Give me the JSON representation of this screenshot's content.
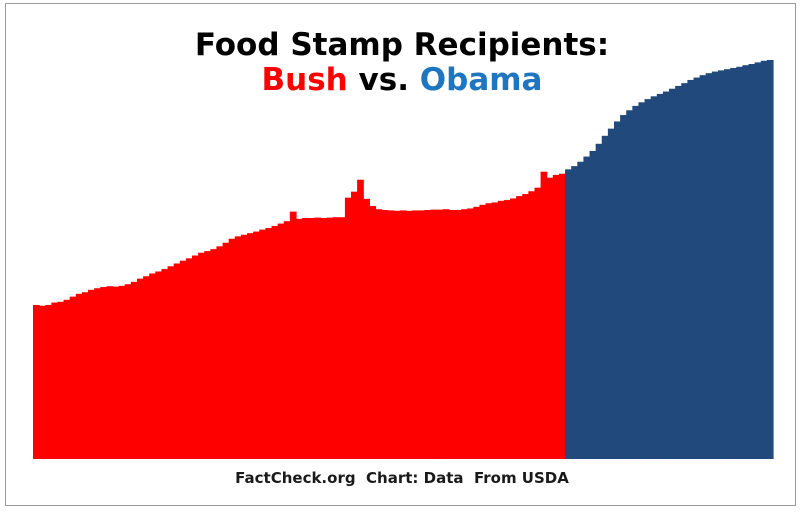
{
  "chart_data": {
    "type": "bar",
    "title_line1": "Food Stamp Recipients:",
    "title_line2": {
      "bush": "Bush",
      "vs": "vs.",
      "obama": "Obama"
    },
    "grid": false,
    "series": [
      {
        "name": "Bush",
        "color": "#ff0000",
        "values": [
          0.386,
          0.384,
          0.386,
          0.392,
          0.394,
          0.399,
          0.407,
          0.414,
          0.418,
          0.424,
          0.428,
          0.431,
          0.433,
          0.432,
          0.434,
          0.438,
          0.444,
          0.452,
          0.458,
          0.465,
          0.47,
          0.476,
          0.483,
          0.49,
          0.497,
          0.503,
          0.51,
          0.517,
          0.521,
          0.526,
          0.533,
          0.542,
          0.552,
          0.558,
          0.562,
          0.566,
          0.57,
          0.575,
          0.579,
          0.584,
          0.59,
          0.596,
          0.62,
          0.602,
          0.604,
          0.604,
          0.605,
          0.604,
          0.605,
          0.606,
          0.606,
          0.655,
          0.67,
          0.7,
          0.652,
          0.634,
          0.626,
          0.624,
          0.623,
          0.622,
          0.623,
          0.622,
          0.623,
          0.623,
          0.624,
          0.625,
          0.625,
          0.626,
          0.624,
          0.624,
          0.626,
          0.628,
          0.632,
          0.637,
          0.641,
          0.643,
          0.647,
          0.649,
          0.653,
          0.659,
          0.664,
          0.671,
          0.68,
          0.72,
          0.705,
          0.712,
          0.715
        ]
      },
      {
        "name": "Obama",
        "color": "#21497b",
        "values": [
          0.726,
          0.734,
          0.745,
          0.758,
          0.772,
          0.79,
          0.81,
          0.828,
          0.846,
          0.862,
          0.874,
          0.885,
          0.894,
          0.902,
          0.909,
          0.915,
          0.921,
          0.928,
          0.935,
          0.942,
          0.95,
          0.956,
          0.962,
          0.967,
          0.971,
          0.974,
          0.977,
          0.98,
          0.983,
          0.987,
          0.99,
          0.994,
          0.998,
          1.0
        ]
      }
    ]
  },
  "source": {
    "org": "FactCheck.org",
    "chart": "Chart: Data",
    "from": "From USDA"
  }
}
